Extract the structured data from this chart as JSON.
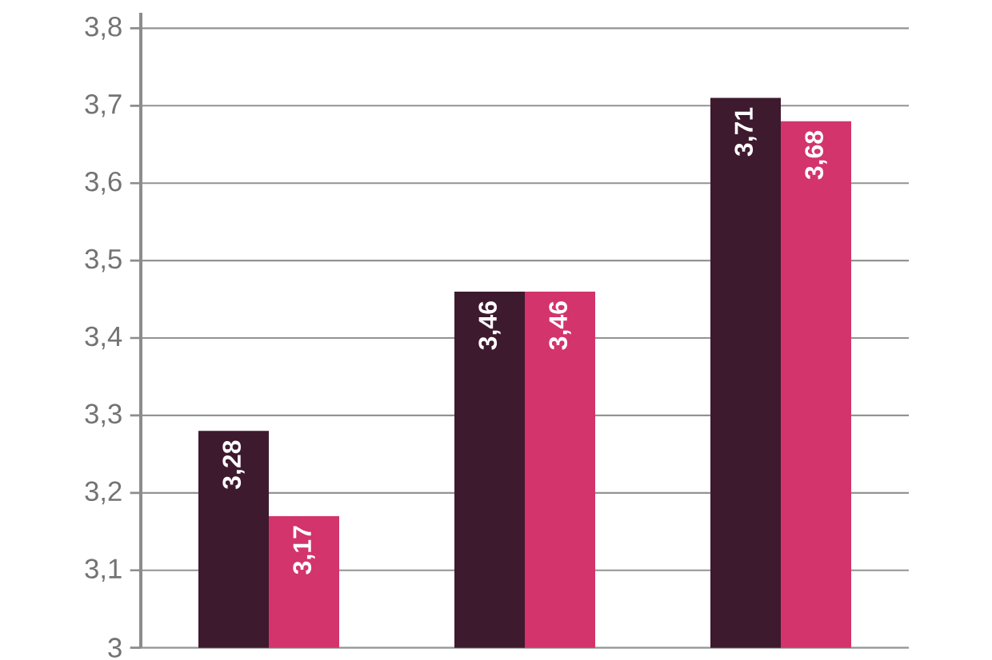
{
  "chart_data": {
    "type": "bar",
    "categories": [
      null,
      null,
      null
    ],
    "series": [
      {
        "color": "#3e1a2f",
        "values": [
          3.28,
          3.46,
          3.71
        ],
        "value_labels": [
          "3,28",
          "3,46",
          "3,71"
        ]
      },
      {
        "color": "#d2346b",
        "values": [
          3.17,
          3.46,
          3.68
        ],
        "value_labels": [
          "3,17",
          "3,46",
          "3,68"
        ]
      }
    ],
    "ylim": [
      3,
      3.82
    ],
    "yticks": [
      {
        "value": 3,
        "label": "3"
      },
      {
        "value": 3.1,
        "label": "3,1"
      },
      {
        "value": 3.2,
        "label": "3,2"
      },
      {
        "value": 3.3,
        "label": "3,3"
      },
      {
        "value": 3.4,
        "label": "3,4"
      },
      {
        "value": 3.5,
        "label": "3,5"
      },
      {
        "value": 3.6,
        "label": "3,6"
      },
      {
        "value": 3.7,
        "label": "3,7"
      },
      {
        "value": 3.8,
        "label": "3,8"
      }
    ],
    "grid": "y"
  }
}
